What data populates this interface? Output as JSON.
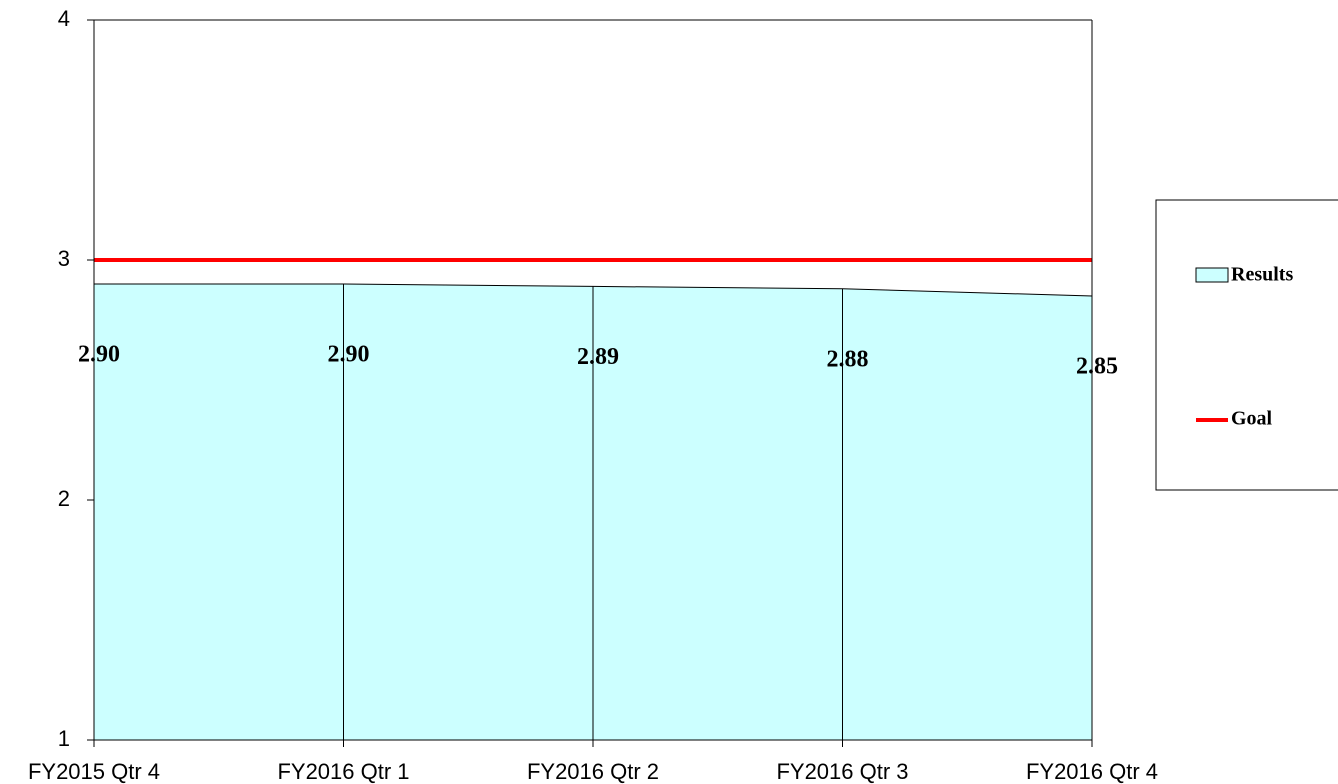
{
  "chart_data": {
    "type": "area",
    "categories": [
      "FY2015 Qtr 4",
      "FY2016 Qtr 1",
      "FY2016 Qtr 2",
      "FY2016 Qtr 3",
      "FY2016 Qtr 4"
    ],
    "series": [
      {
        "name": "Results",
        "color": "#ccffff",
        "values": [
          2.9,
          2.9,
          2.89,
          2.88,
          2.85
        ],
        "value_labels": [
          "2.90",
          "2.90",
          "2.89",
          "2.88",
          "2.85"
        ]
      },
      {
        "name": "Goal",
        "color": "#ff0000",
        "values": [
          3,
          3,
          3,
          3,
          3
        ]
      }
    ],
    "ylim": [
      1,
      4
    ],
    "yticks": [
      1,
      2,
      3,
      4
    ],
    "legend": "right"
  }
}
